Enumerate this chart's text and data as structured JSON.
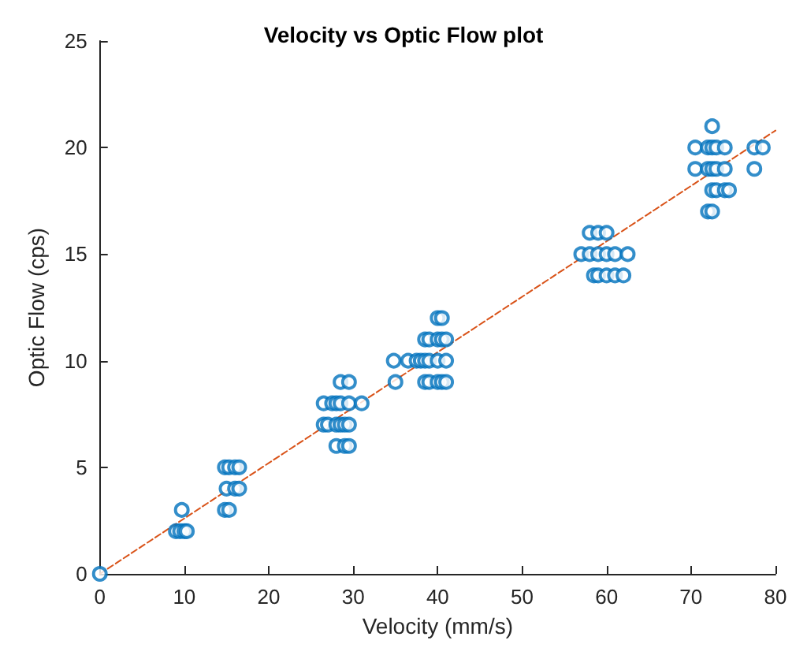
{
  "chart_data": {
    "type": "scatter",
    "title": "Velocity vs Optic Flow plot",
    "xlabel": "Velocity (mm/s)",
    "ylabel": "Optic Flow (cps)",
    "xlim": [
      0,
      80
    ],
    "ylim": [
      0,
      25
    ],
    "xticks": [
      0,
      10,
      20,
      30,
      40,
      50,
      60,
      70,
      80
    ],
    "yticks": [
      0,
      5,
      10,
      15,
      20,
      25
    ],
    "grid": false,
    "marker": "circle",
    "series": [
      {
        "color": "#0072bd",
        "x": [
          0,
          9,
          9.5,
          10,
          10.3,
          9.7,
          14.8,
          15.3,
          15,
          16,
          16.5,
          14.8,
          15.3,
          16,
          16.5,
          28,
          29,
          29.5,
          26.5,
          27,
          28,
          28.5,
          29,
          29.5,
          26.5,
          27.5,
          28,
          28.5,
          29.5,
          31,
          28.5,
          29.5,
          35,
          38.5,
          39,
          40,
          40.5,
          41,
          34.8,
          36.5,
          37.5,
          38,
          38.5,
          39,
          40,
          41,
          38.5,
          39,
          40,
          40.5,
          41,
          40,
          40.5,
          58.5,
          59,
          60,
          61,
          62,
          57,
          58,
          59,
          60,
          61,
          62.5,
          58,
          59,
          60,
          72,
          72.5,
          72.5,
          73,
          74,
          74.5,
          70.5,
          72,
          72.5,
          73,
          74,
          77.5,
          70.5,
          72,
          72.5,
          73,
          74,
          77.5,
          78.5,
          72.5
        ],
        "values": [
          0,
          2,
          2,
          2,
          2,
          3,
          3,
          3,
          4,
          4,
          4,
          5,
          5,
          5,
          5,
          6,
          6,
          6,
          7,
          7,
          7,
          7,
          7,
          7,
          8,
          8,
          8,
          8,
          8,
          8,
          9,
          9,
          9,
          9,
          9,
          9,
          9,
          9,
          10,
          10,
          10,
          10,
          10,
          10,
          10,
          10,
          11,
          11,
          11,
          11,
          11,
          12,
          12,
          14,
          14,
          14,
          14,
          14,
          15,
          15,
          15,
          15,
          15,
          15,
          16,
          16,
          16,
          17,
          17,
          18,
          18,
          18,
          18,
          19,
          19,
          19,
          19,
          19,
          19,
          20,
          20,
          20,
          20,
          20,
          20,
          20,
          21
        ]
      },
      {
        "type": "line",
        "color": "#d95319",
        "line_style": "dashed",
        "marker": "none",
        "x": [
          0,
          80
        ],
        "values": [
          0,
          20.8
        ]
      }
    ]
  }
}
